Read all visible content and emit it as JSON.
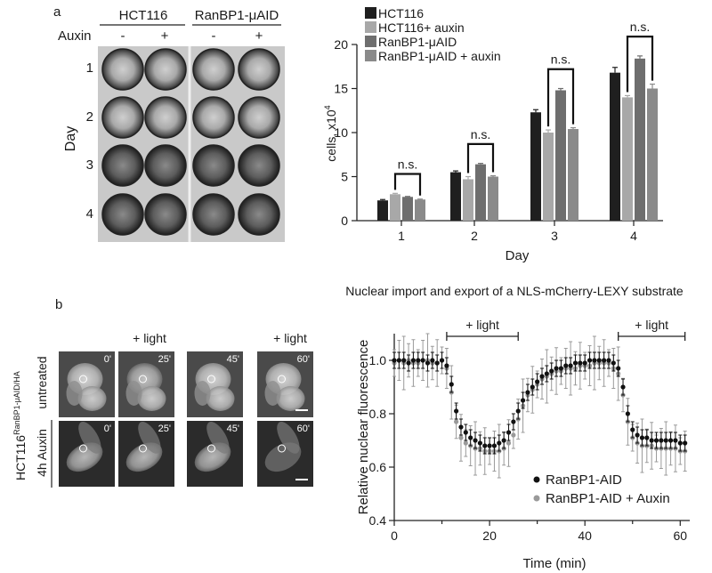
{
  "panel_a": {
    "label": "a",
    "plates": {
      "group1": "HCT116",
      "group2": "RanBP1-μAID",
      "auxin_label": "Auxin",
      "signs": [
        "-",
        "+",
        "-",
        "+"
      ],
      "day_label": "Day",
      "days": [
        "1",
        "2",
        "3",
        "4"
      ]
    }
  },
  "panel_b": {
    "label": "b",
    "cell_line": "HCT116",
    "cell_line_sup": "RanBP1-μAID/HA",
    "row_labels": [
      "untreated",
      "4h Auxin"
    ],
    "light_labels": [
      "+ light",
      "+ light"
    ],
    "times": [
      "0'",
      "25'",
      "45'",
      "60'"
    ]
  },
  "chart_data": [
    {
      "type": "bar",
      "xlabel": "Day",
      "ylabel": "cells, x10",
      "ylabel_exp": "4",
      "ylim": [
        0,
        20
      ],
      "yticks": [
        0,
        5,
        10,
        15,
        20
      ],
      "categories": [
        "1",
        "2",
        "3",
        "4"
      ],
      "series": [
        {
          "name": "HCT116",
          "color": "#1f1f1f",
          "values": [
            2.3,
            5.5,
            12.3,
            16.8
          ],
          "errors": [
            0.1,
            0.15,
            0.3,
            0.6
          ]
        },
        {
          "name": "HCT116+ auxin",
          "color": "#a8a8a8",
          "values": [
            3.0,
            4.7,
            10.0,
            14.0
          ],
          "errors": [
            0.1,
            0.3,
            0.3,
            0.2
          ]
        },
        {
          "name": "RanBP1-μAID",
          "color": "#6e6e6e",
          "values": [
            2.7,
            6.4,
            14.8,
            18.4
          ],
          "errors": [
            0.05,
            0.1,
            0.2,
            0.3
          ]
        },
        {
          "name": "RanBP1-μAID + auxin",
          "color": "#8a8a8a",
          "values": [
            2.4,
            5.0,
            10.4,
            15.0
          ],
          "errors": [
            0.05,
            0.1,
            0.15,
            0.5
          ]
        }
      ],
      "annotations": [
        "n.s.",
        "n.s.",
        "n.s.",
        "n.s."
      ],
      "legend": "top-left"
    },
    {
      "type": "scatter",
      "title": "Nuclear import and export of a NLS-mCherry-LEXY substrate",
      "xlabel": "Time (min)",
      "ylabel": "Relative nuclear fluorescence",
      "xlim": [
        0,
        62
      ],
      "ylim": [
        0.4,
        1.1
      ],
      "xticks": [
        0,
        20,
        40,
        60
      ],
      "yticks": [
        0.4,
        0.6,
        0.8,
        1.0
      ],
      "light_periods": [
        [
          11,
          26
        ],
        [
          47,
          61
        ]
      ],
      "light_labels": [
        "+ light",
        "+ light"
      ],
      "series": [
        {
          "name": "RanBP1-AID",
          "color": "#111111",
          "x": [
            0,
            1,
            2,
            3,
            4,
            5,
            6,
            7,
            8,
            9,
            10,
            11,
            12,
            13,
            14,
            15,
            16,
            17,
            18,
            19,
            20,
            21,
            22,
            23,
            24,
            25,
            26,
            27,
            28,
            29,
            30,
            31,
            32,
            33,
            34,
            35,
            36,
            37,
            38,
            39,
            40,
            41,
            42,
            43,
            44,
            45,
            46,
            47,
            48,
            49,
            50,
            51,
            52,
            53,
            54,
            55,
            56,
            57,
            58,
            59,
            60,
            61
          ],
          "y": [
            1.0,
            1.0,
            1.0,
            0.99,
            1.0,
            1.0,
            1.0,
            0.99,
            1.0,
            0.99,
            1.0,
            0.98,
            0.91,
            0.81,
            0.75,
            0.73,
            0.71,
            0.7,
            0.69,
            0.68,
            0.68,
            0.68,
            0.69,
            0.7,
            0.73,
            0.77,
            0.81,
            0.85,
            0.88,
            0.9,
            0.92,
            0.94,
            0.95,
            0.96,
            0.97,
            0.97,
            0.98,
            0.98,
            0.99,
            0.99,
            0.99,
            1.0,
            1.0,
            1.0,
            1.0,
            1.0,
            0.99,
            0.97,
            0.9,
            0.8,
            0.74,
            0.72,
            0.71,
            0.71,
            0.7,
            0.7,
            0.7,
            0.7,
            0.7,
            0.7,
            0.69,
            0.69
          ],
          "err": 0.03
        },
        {
          "name": "RanBP1-AID + Auxin",
          "color": "#9a9a9a",
          "x": [
            0,
            1,
            2,
            3,
            4,
            5,
            6,
            7,
            8,
            9,
            10,
            11,
            12,
            13,
            14,
            15,
            16,
            17,
            18,
            19,
            20,
            21,
            22,
            23,
            24,
            25,
            26,
            27,
            28,
            29,
            30,
            31,
            32,
            33,
            34,
            35,
            36,
            37,
            38,
            39,
            40,
            41,
            42,
            43,
            44,
            45,
            46,
            47,
            48,
            49,
            50,
            51,
            52,
            53,
            54,
            55,
            56,
            57,
            58,
            59,
            60,
            61
          ],
          "y": [
            0.99,
            1.0,
            0.99,
            1.0,
            0.99,
            0.99,
            1.0,
            1.0,
            0.99,
            0.99,
            1.0,
            0.97,
            0.88,
            0.77,
            0.71,
            0.69,
            0.68,
            0.67,
            0.67,
            0.66,
            0.66,
            0.66,
            0.66,
            0.67,
            0.69,
            0.72,
            0.78,
            0.83,
            0.87,
            0.89,
            0.91,
            0.93,
            0.94,
            0.95,
            0.96,
            0.96,
            0.97,
            0.97,
            0.97,
            0.98,
            0.98,
            0.98,
            0.99,
            0.99,
            0.99,
            0.99,
            0.97,
            0.95,
            0.87,
            0.77,
            0.71,
            0.69,
            0.68,
            0.68,
            0.68,
            0.67,
            0.67,
            0.67,
            0.67,
            0.67,
            0.66,
            0.66
          ],
          "err": 0.05
        }
      ],
      "legend": "bottom-right"
    }
  ]
}
